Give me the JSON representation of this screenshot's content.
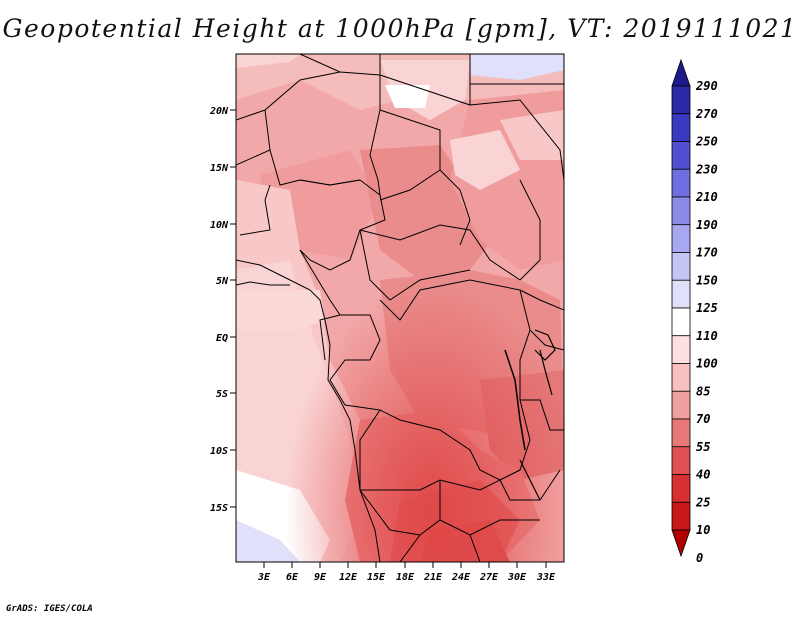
{
  "title": "Geopotential Height at 1000hPa [gpm], VT: 2019111021",
  "credit": "GrADS: IGES/COLA",
  "map": {
    "lat_labels": [
      "20N",
      "15N",
      "10N",
      "5N",
      "EQ",
      "5S",
      "10S",
      "15S"
    ],
    "lon_labels": [
      "3E",
      "6E",
      "9E",
      "12E",
      "15E",
      "18E",
      "21E",
      "24E",
      "27E",
      "30E",
      "33E"
    ],
    "lon_range": [
      0,
      35
    ],
    "lat_range": [
      -20,
      24
    ]
  },
  "colorbar": {
    "labels": [
      "290",
      "270",
      "250",
      "230",
      "210",
      "190",
      "170",
      "150",
      "125",
      "110",
      "100",
      "85",
      "70",
      "55",
      "40",
      "25",
      "10",
      "0"
    ],
    "colors": [
      "#1c1a8c",
      "#2a2aa8",
      "#3a3ac0",
      "#5050d0",
      "#6e6ee0",
      "#8c8ce8",
      "#a8a8f0",
      "#c4c4f5",
      "#e0e0fa",
      "#ffffff",
      "#fde0e0",
      "#f8c0c0",
      "#f0a0a0",
      "#e87878",
      "#e05050",
      "#d83030",
      "#c81818",
      "#b00000"
    ]
  }
}
